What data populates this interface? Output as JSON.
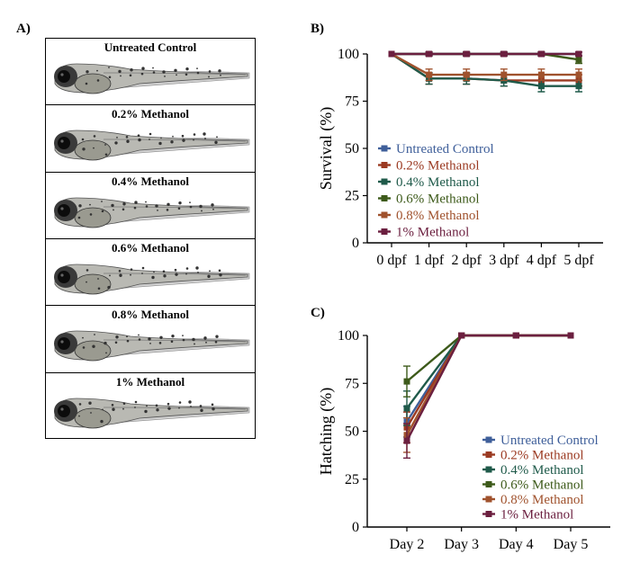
{
  "panels": {
    "a": "A)",
    "b": "B)",
    "c": "C)"
  },
  "larvae": [
    {
      "label": "Untreated Control"
    },
    {
      "label": "0.2% Methanol"
    },
    {
      "label": "0.4% Methanol"
    },
    {
      "label": "0.6% Methanol"
    },
    {
      "label": "0.8% Methanol"
    },
    {
      "label": "1% Methanol"
    }
  ],
  "colors": {
    "untreated": "#3f5f9a",
    "m02": "#9b3a22",
    "m04": "#1f5a4a",
    "m06": "#3d5a1a",
    "m08": "#a0522d",
    "m1": "#6b1f3f"
  },
  "chart_data": [
    {
      "type": "line",
      "ylabel": "Survival (%)",
      "xlabel": "",
      "categories": [
        "0 dpf",
        "1 dpf",
        "2 dpf",
        "3 dpf",
        "4 dpf",
        "5 dpf"
      ],
      "ylim": [
        0,
        100
      ],
      "yticks": [
        0,
        25,
        50,
        75,
        100
      ],
      "legend_position": "bottom-left",
      "series": [
        {
          "name": "Untreated Control",
          "values": [
            100,
            100,
            100,
            100,
            100,
            100
          ],
          "err": [
            0,
            1,
            1,
            1,
            1,
            1
          ]
        },
        {
          "name": "0.2% Methanol",
          "values": [
            100,
            87,
            87,
            86,
            86,
            86
          ],
          "err": [
            0,
            3,
            3,
            3,
            3,
            3
          ]
        },
        {
          "name": "0.4% Methanol",
          "values": [
            100,
            87,
            87,
            86,
            83,
            83
          ],
          "err": [
            0,
            3,
            3,
            3,
            3,
            3
          ]
        },
        {
          "name": "0.6% Methanol",
          "values": [
            100,
            100,
            100,
            100,
            100,
            97
          ],
          "err": [
            0,
            1,
            1,
            1,
            1,
            2
          ]
        },
        {
          "name": "0.8% Methanol",
          "values": [
            100,
            89,
            89,
            89,
            89,
            89
          ],
          "err": [
            0,
            3,
            3,
            3,
            3,
            3
          ]
        },
        {
          "name": "1% Methanol",
          "values": [
            100,
            100,
            100,
            100,
            100,
            100
          ],
          "err": [
            0,
            1,
            1,
            1,
            1,
            1
          ]
        }
      ]
    },
    {
      "type": "line",
      "ylabel": "Hatching (%)",
      "xlabel": "",
      "categories": [
        "Day 2",
        "Day 3",
        "Day 4",
        "Day 5"
      ],
      "ylim": [
        0,
        100
      ],
      "yticks": [
        0,
        25,
        50,
        75,
        100
      ],
      "legend_position": "bottom-right",
      "series": [
        {
          "name": "Untreated Control",
          "values": [
            55,
            100,
            100,
            100
          ],
          "err": [
            8,
            0,
            0,
            0
          ]
        },
        {
          "name": "0.2% Methanol",
          "values": [
            52,
            100,
            100,
            100
          ],
          "err": [
            8,
            0,
            0,
            0
          ]
        },
        {
          "name": "0.4% Methanol",
          "values": [
            62,
            100,
            100,
            100
          ],
          "err": [
            9,
            0,
            0,
            0
          ]
        },
        {
          "name": "0.6% Methanol",
          "values": [
            76,
            100,
            100,
            100
          ],
          "err": [
            8,
            0,
            0,
            0
          ]
        },
        {
          "name": "0.8% Methanol",
          "values": [
            48,
            100,
            100,
            100
          ],
          "err": [
            9,
            0,
            0,
            0
          ]
        },
        {
          "name": "1% Methanol",
          "values": [
            45,
            100,
            100,
            100
          ],
          "err": [
            9,
            0,
            0,
            0
          ]
        }
      ]
    }
  ]
}
